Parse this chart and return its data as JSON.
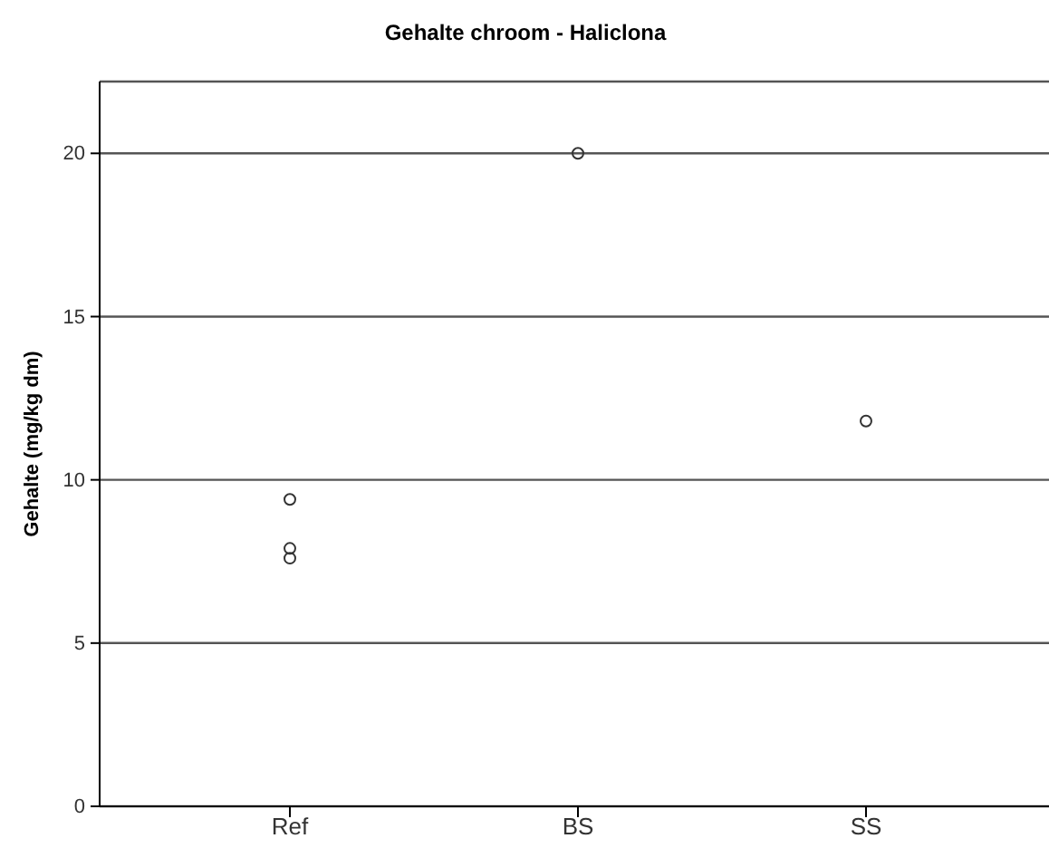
{
  "chart_data": {
    "type": "scatter",
    "title": "Gehalte chroom - Haliclona",
    "ylabel": "Gehalte (mg/kg dm)",
    "categories": [
      "Ref",
      "BS",
      "SS"
    ],
    "series": [
      {
        "color": "#333333",
        "x": [
          "Ref",
          "Ref",
          "Ref",
          "BS",
          "SS"
        ],
        "values": [
          9.4,
          7.9,
          7.6,
          20.0,
          11.8
        ]
      }
    ],
    "ylim": [
      0,
      22.2
    ],
    "yticks": [
      0,
      5,
      10,
      15,
      20
    ],
    "grid": "y",
    "marker": "circle"
  }
}
